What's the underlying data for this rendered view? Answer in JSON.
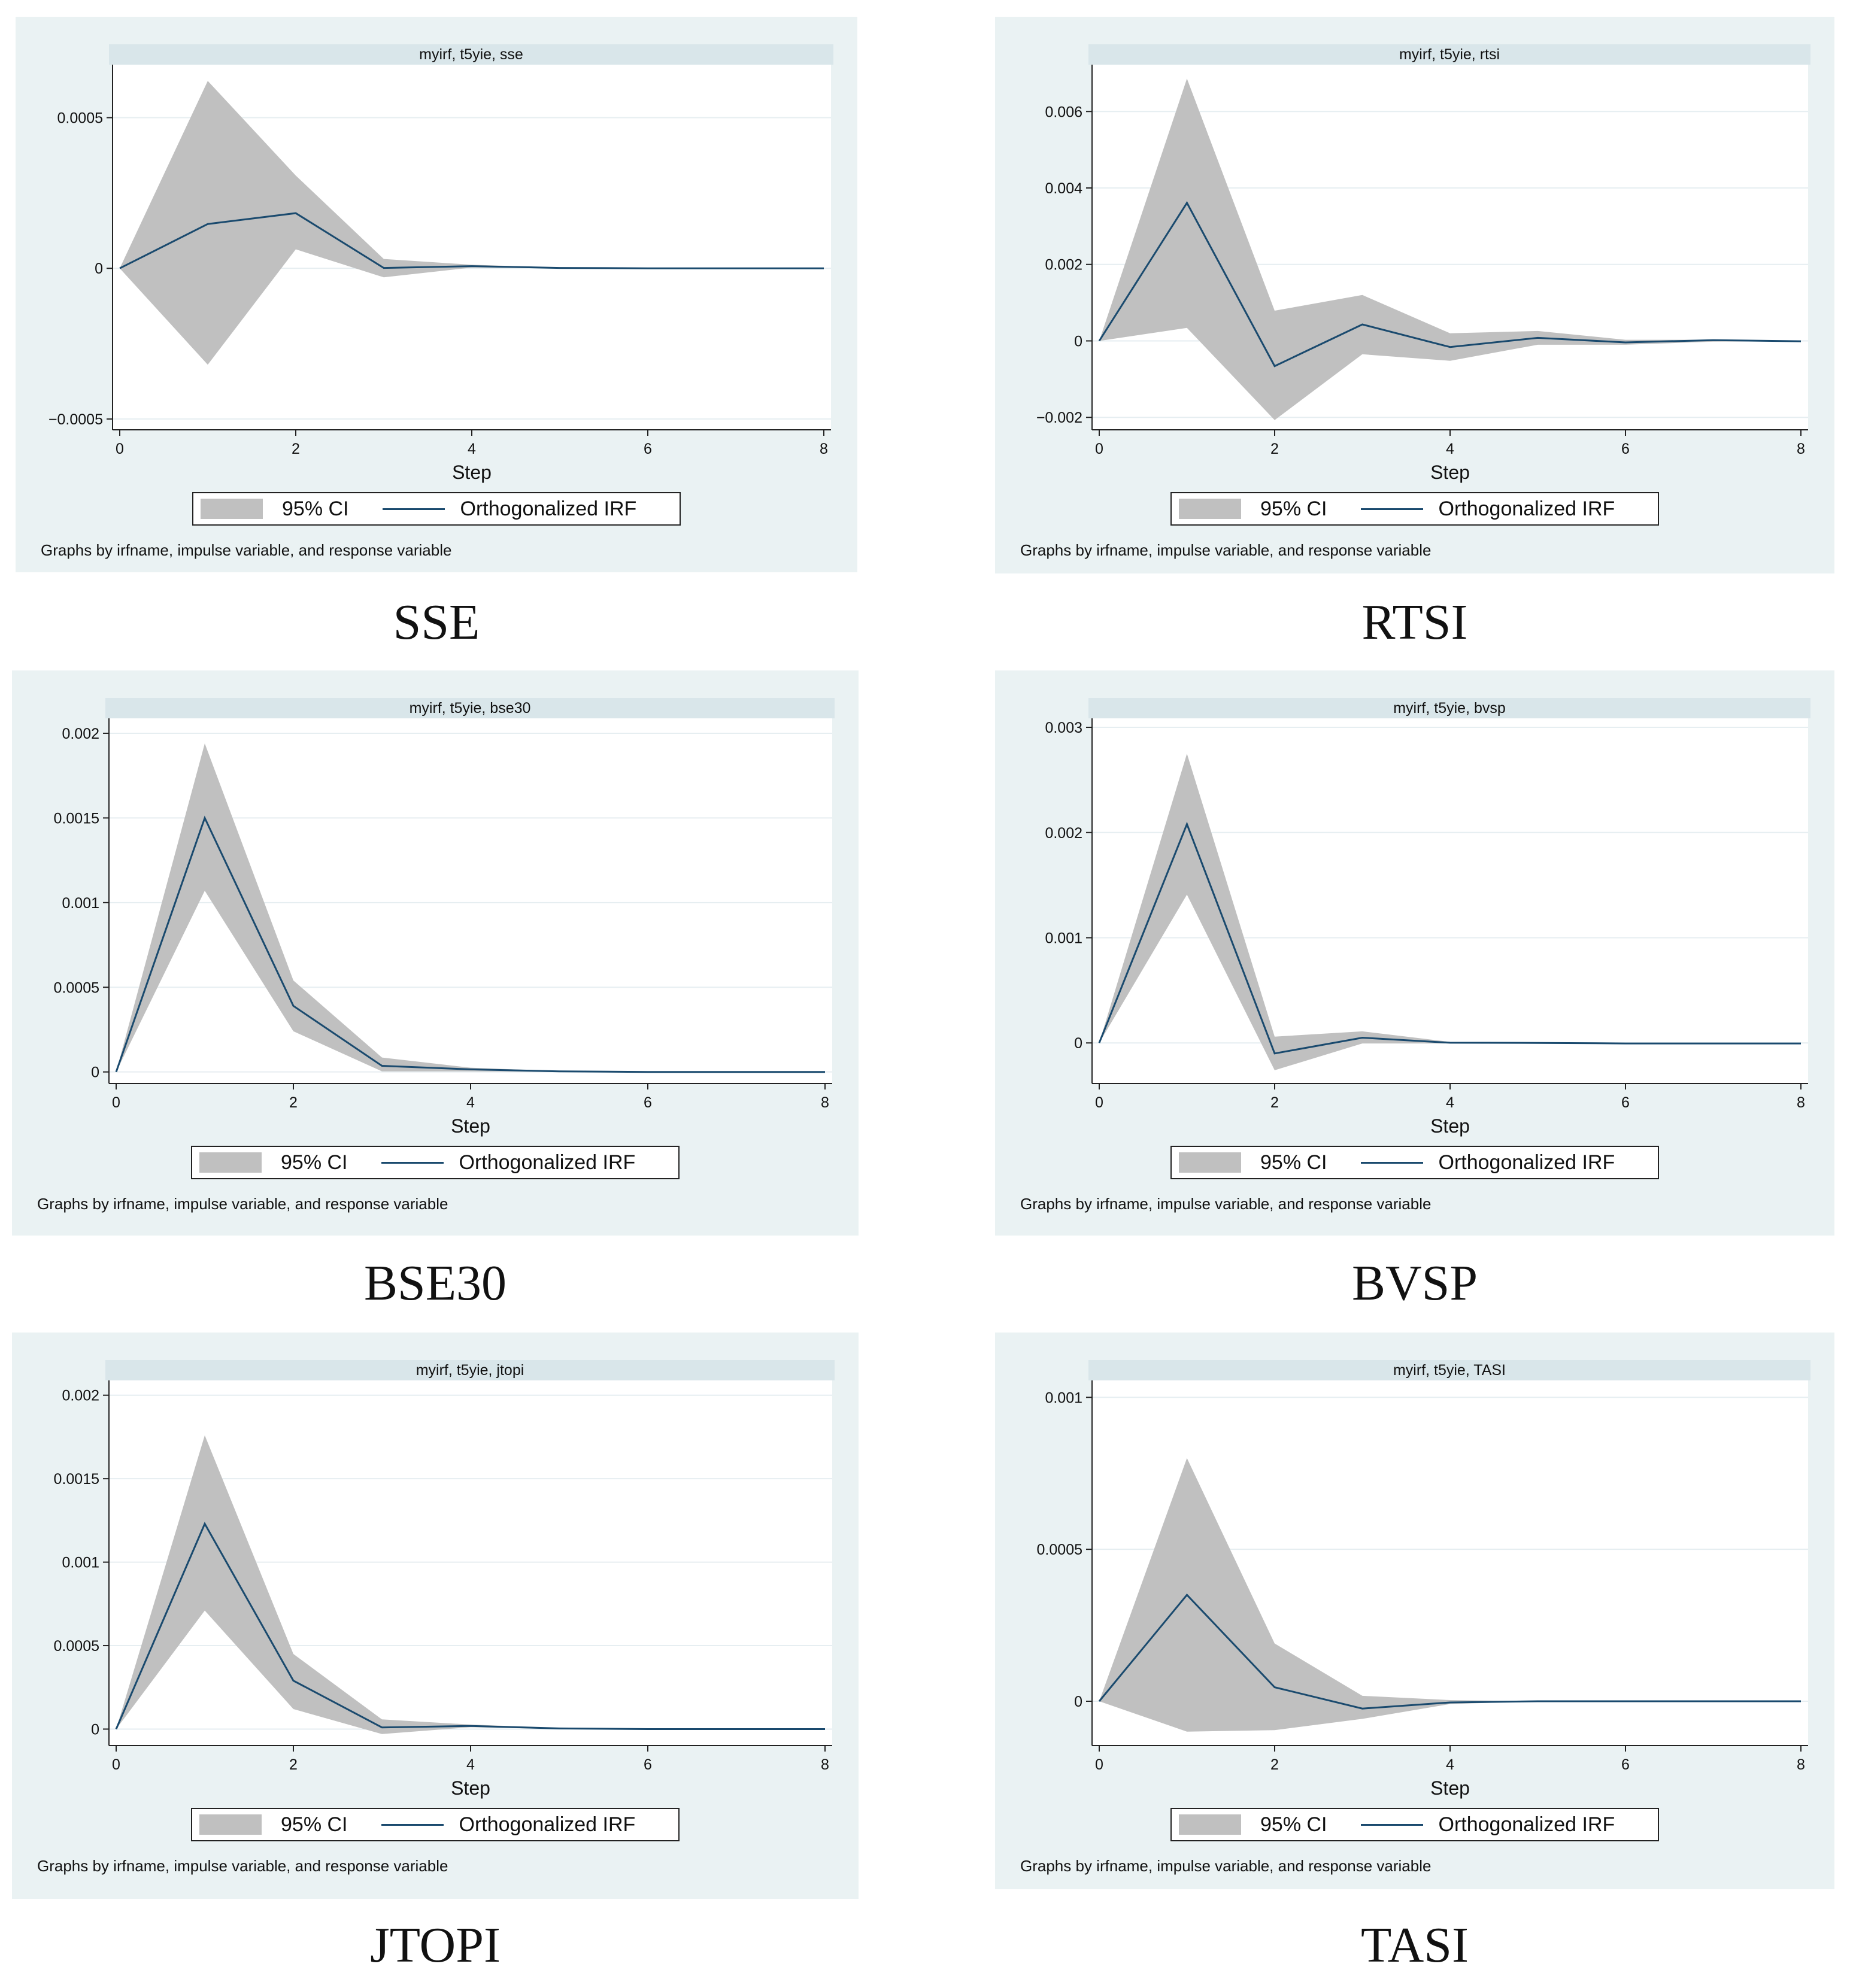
{
  "footnote": "Graphs by irfname, impulse variable, and response variable",
  "legend": {
    "ci_label": "95% CI",
    "irf_label": "Orthogonalized IRF"
  },
  "colors": {
    "panel_bg": "#eaf2f3",
    "title_strip": "#d9e6ea",
    "ci_band": "#c0c0c0",
    "irf_line": "#1a4a6e",
    "grid": "#e6eef1"
  },
  "chart_data": [
    {
      "type": "area",
      "caption": "SSE",
      "title": "myirf, t5yie, sse",
      "xlabel": "Step",
      "x": [
        0,
        1,
        2,
        3,
        4,
        5,
        6,
        7,
        8
      ],
      "xticks": [
        "0",
        "2",
        "4",
        "6",
        "8"
      ],
      "yticks": [
        -0.0005,
        0,
        0.0005
      ],
      "ytick_labels": [
        "−0.0005",
        "0",
        "0.0005"
      ],
      "ylim": [
        -0.00052,
        0.00066
      ],
      "series": [
        {
          "name": "Orthogonalized IRF",
          "values": [
            0,
            0.000147,
            0.000183,
            1.2e-06,
            7.2e-06,
            1.2e-06,
            0,
            0,
            0
          ]
        },
        {
          "name": "95% CI",
          "lower": [
            0,
            -0.00032,
            6.3e-05,
            -3e-05,
            2.4e-06,
            0,
            0,
            0,
            0
          ],
          "upper": [
            0,
            0.000622,
            0.000308,
            3.1e-05,
            1.2e-05,
            2.4e-06,
            0,
            0,
            0
          ]
        }
      ]
    },
    {
      "type": "area",
      "caption": "RTSI",
      "title": "myirf, t5yie, rtsi",
      "xlabel": "Step",
      "x": [
        0,
        1,
        2,
        3,
        4,
        5,
        6,
        7,
        8
      ],
      "xticks": [
        "0",
        "2",
        "4",
        "6",
        "8"
      ],
      "yticks": [
        -0.002,
        0,
        0.002,
        0.004,
        0.006
      ],
      "ytick_labels": [
        "−0.002",
        "0",
        "0.002",
        "0.004",
        "0.006"
      ],
      "ylim": [
        -0.0022,
        0.0071
      ],
      "series": [
        {
          "name": "Orthogonalized IRF",
          "values": [
            0,
            0.00361,
            -0.00066,
            0.00043,
            -0.00016,
            8e-05,
            -4e-05,
            2e-05,
            -1e-05
          ]
        },
        {
          "name": "95% CI",
          "lower": [
            0,
            0.00034,
            -0.00207,
            -0.00035,
            -0.00052,
            -0.0001,
            -0.0001,
            -2e-05,
            -1e-05
          ],
          "upper": [
            0,
            0.00686,
            0.00079,
            0.0012,
            0.0002,
            0.00026,
            3e-05,
            3e-05,
            0
          ]
        }
      ]
    },
    {
      "type": "area",
      "caption": "BSE30",
      "title": "myirf, t5yie, bse30",
      "xlabel": "Step",
      "x": [
        0,
        1,
        2,
        3,
        4,
        5,
        6,
        7,
        8
      ],
      "xticks": [
        "0",
        "2",
        "4",
        "6",
        "8"
      ],
      "yticks": [
        0,
        0.0005,
        0.001,
        0.0015,
        0.002
      ],
      "ytick_labels": [
        "0",
        "0.0005",
        "0.001",
        "0.0015",
        "0.002"
      ],
      "ylim": [
        -4e-05,
        0.00206
      ],
      "series": [
        {
          "name": "Orthogonalized IRF",
          "values": [
            0,
            0.0015,
            0.00039,
            3.6e-05,
            1.5e-05,
            3e-06,
            0,
            0,
            0
          ]
        },
        {
          "name": "95% CI",
          "lower": [
            0,
            0.00107,
            0.00024,
            3.6e-06,
            3.6e-06,
            0,
            0,
            0,
            0
          ],
          "upper": [
            0,
            0.00194,
            0.00054,
            8.5e-05,
            2.5e-05,
            5e-06,
            0,
            0,
            0
          ]
        }
      ]
    },
    {
      "type": "area",
      "caption": "BVSP",
      "title": "myirf, t5yie, bvsp",
      "xlabel": "Step",
      "x": [
        0,
        1,
        2,
        3,
        4,
        5,
        6,
        7,
        8
      ],
      "xticks": [
        "0",
        "2",
        "4",
        "6",
        "8"
      ],
      "yticks": [
        0,
        0.001,
        0.002,
        0.003
      ],
      "ytick_labels": [
        "0",
        "0.001",
        "0.002",
        "0.003"
      ],
      "ylim": [
        -0.00034,
        0.00304
      ],
      "series": [
        {
          "name": "Orthogonalized IRF",
          "values": [
            0,
            0.00208,
            -0.0001,
            5e-05,
            2e-06,
            0,
            -5e-06,
            -5e-06,
            -5e-06
          ]
        },
        {
          "name": "95% CI",
          "lower": [
            0,
            0.00141,
            -0.00026,
            -5e-06,
            -5e-06,
            -5e-06,
            -5e-06,
            -5e-06,
            -5e-06
          ],
          "upper": [
            0,
            0.00275,
            6e-05,
            0.00011,
            1e-05,
            5e-06,
            0,
            0,
            0
          ]
        }
      ]
    },
    {
      "type": "area",
      "caption": "JTOPI",
      "title": "myirf, t5yie, jtopi",
      "xlabel": "Step",
      "x": [
        0,
        1,
        2,
        3,
        4,
        5,
        6,
        7,
        8
      ],
      "xticks": [
        "0",
        "2",
        "4",
        "6",
        "8"
      ],
      "yticks": [
        0,
        0.0005,
        0.001,
        0.0015,
        0.002
      ],
      "ytick_labels": [
        "0",
        "0.0005",
        "0.001",
        "0.0015",
        "0.002"
      ],
      "ylim": [
        -7e-05,
        0.00206
      ],
      "series": [
        {
          "name": "Orthogonalized IRF",
          "values": [
            0,
            0.00123,
            0.00029,
            1e-05,
            1.9e-05,
            4e-06,
            0,
            0,
            0
          ]
        },
        {
          "name": "95% CI",
          "lower": [
            0,
            0.00071,
            0.00012,
            -3e-05,
            1.1e-05,
            0,
            0,
            0,
            0
          ],
          "upper": [
            0,
            0.00176,
            0.00045,
            5.8e-05,
            2.7e-05,
            7e-06,
            0,
            0,
            0
          ]
        }
      ]
    },
    {
      "type": "area",
      "caption": "TASI",
      "title": "myirf, t5yie, TASI",
      "xlabel": "Step",
      "x": [
        0,
        1,
        2,
        3,
        4,
        5,
        6,
        7,
        8
      ],
      "xticks": [
        "0",
        "2",
        "4",
        "6",
        "8"
      ],
      "yticks": [
        0,
        0.0005,
        0.001
      ],
      "ytick_labels": [
        "0",
        "0.0005",
        "0.001"
      ],
      "ylim": [
        -0.00013,
        0.00104
      ],
      "series": [
        {
          "name": "Orthogonalized IRF",
          "values": [
            0,
            0.00035,
            4.6e-05,
            -2.4e-05,
            -4e-06,
            0,
            0,
            0,
            0
          ]
        },
        {
          "name": "95% CI",
          "lower": [
            0,
            -0.0001,
            -9.5e-05,
            -5.8e-05,
            -9e-06,
            0,
            0,
            0,
            0
          ],
          "upper": [
            0,
            0.0008,
            0.00019,
            1.8e-05,
            4e-06,
            0,
            0,
            0,
            0
          ]
        }
      ]
    }
  ]
}
